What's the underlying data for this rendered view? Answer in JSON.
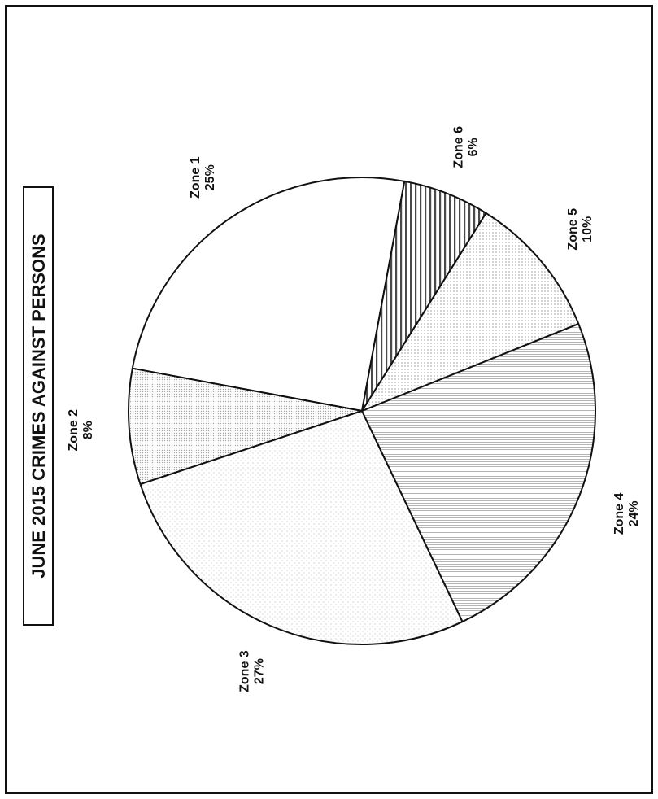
{
  "chart_data": {
    "type": "pie",
    "title": "JUNE 2015 CRIMES AGAINST PERSONS",
    "rotated": "90deg counter-clockwise",
    "slices": [
      {
        "label": "Zone 1",
        "pct_label": "25%",
        "value": 25,
        "pattern": "blank"
      },
      {
        "label": "Zone 2",
        "pct_label": "8%",
        "value": 8,
        "pattern": "fine-dots"
      },
      {
        "label": "Zone 3",
        "pct_label": "27%",
        "value": 27,
        "pattern": "sparse-dots"
      },
      {
        "label": "Zone 4",
        "pct_label": "24%",
        "value": 24,
        "pattern": "horizontal-lines"
      },
      {
        "label": "Zone 5",
        "pct_label": "10%",
        "value": 10,
        "pattern": "dots"
      },
      {
        "label": "Zone 6",
        "pct_label": "6%",
        "value": 6,
        "pattern": "vertical-stripes"
      }
    ],
    "colors": {
      "outline": "#111111",
      "fill": "#ffffff",
      "pattern": "#9a9a9a"
    }
  }
}
